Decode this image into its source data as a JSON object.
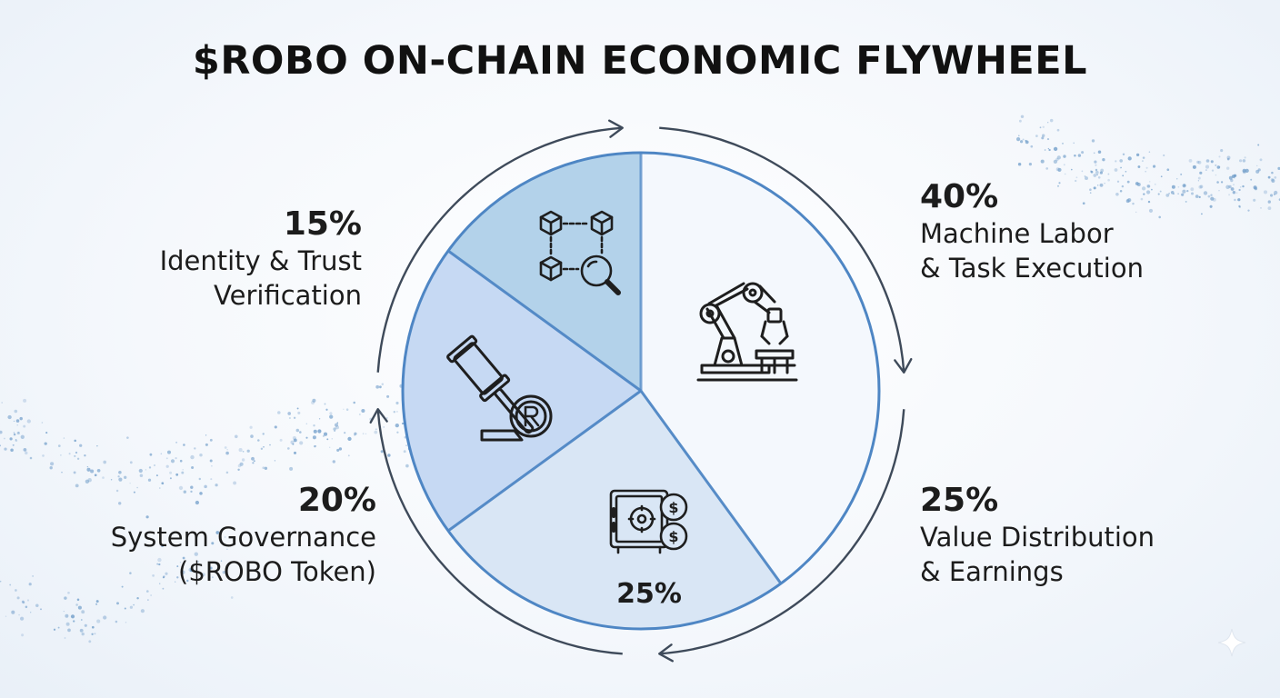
{
  "title": "$ROBO ON-CHAIN ECONOMIC FLYWHEEL",
  "colors": {
    "machine": "#f4f8fd",
    "value": "#d9e6f5",
    "governance": "#c6d9f3",
    "identity": "#b3d2ea",
    "border": "#4e86c4",
    "arrows": "#3e4a5a",
    "icon": "#1e1e1e"
  },
  "chart_data": {
    "type": "pie",
    "title": "$ROBO ON-CHAIN ECONOMIC FLYWHEEL",
    "slices": [
      {
        "label": "Machine Labor & Task Execution",
        "value": 40,
        "percent_label": "40%",
        "icon": "robot-arm-icon"
      },
      {
        "label": "Value Distribution & Earnings",
        "value": 25,
        "percent_label": "25%",
        "icon": "safe-coins-icon"
      },
      {
        "label": "System Governance ($ROBO Token)",
        "value": 20,
        "percent_label": "20%",
        "icon": "gavel-token-icon"
      },
      {
        "label": "Identity & Trust Verification",
        "value": 15,
        "percent_label": "15%",
        "icon": "blockchain-search-icon"
      }
    ],
    "inner_label": "25%",
    "legend": "none"
  },
  "callouts": {
    "identity": {
      "pct": "15%",
      "line1": "Identity & Trust",
      "line2": "Verification"
    },
    "governance": {
      "pct": "20%",
      "line1": "System Governance",
      "line2": "($ROBO Token)"
    },
    "machine": {
      "pct": "40%",
      "line1": "Machine Labor",
      "line2": "& Task Execution"
    },
    "value": {
      "pct": "25%",
      "line1": "Value Distribution",
      "line2": "& Earnings"
    }
  }
}
